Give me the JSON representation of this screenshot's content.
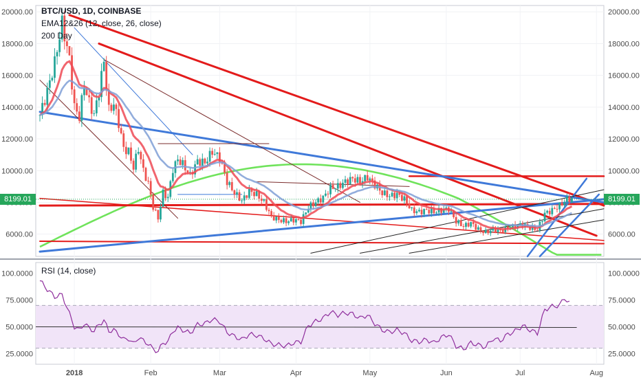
{
  "header": {
    "symbol": "BTC/USD, 1D, COINBASE",
    "ema_label": "EMA12&26 (12, close, 26, close)",
    "ma_label": "200 Day"
  },
  "rsi_panel": {
    "label": "RSI (14, close)"
  },
  "last_price": "8199.01",
  "colors": {
    "up_candle": "#26a69a",
    "down_candle": "#ef5350",
    "ema_fast": "#ee4a55",
    "ema_slow": "#7f9fd6",
    "ma200": "#6fe35b",
    "trend_red": "#e31b1b",
    "trend_blue": "#3f79d9",
    "rsi_line": "#8e2d9c",
    "rsi_band": "#f1e4f8",
    "price_tag": "#26a65b"
  },
  "chart_data": {
    "type": "candlestick",
    "price_axis": {
      "range": [
        4600,
        20400
      ],
      "ticks": [
        "6000.00",
        "8000.00",
        "10000.00",
        "12000.00",
        "14000.00",
        "16000.00",
        "18000.00",
        "20000.00"
      ],
      "tick_values": [
        6000,
        8000,
        10000,
        12000,
        14000,
        16000,
        18000,
        20000
      ]
    },
    "time_axis": {
      "labels": [
        "2018",
        "Feb",
        "Mar",
        "Apr",
        "May",
        "Jun",
        "Jul",
        "Aug"
      ],
      "label_days": [
        14,
        45,
        73,
        104,
        134,
        165,
        195,
        226
      ]
    },
    "price_series": [
      {
        "d": 0,
        "p": 13500
      },
      {
        "d": 3,
        "p": 15000
      },
      {
        "d": 6,
        "p": 16800
      },
      {
        "d": 9,
        "p": 19300
      },
      {
        "d": 12,
        "p": 17000
      },
      {
        "d": 14,
        "p": 14000
      },
      {
        "d": 16,
        "p": 13400
      },
      {
        "d": 18,
        "p": 15400
      },
      {
        "d": 20,
        "p": 14300
      },
      {
        "d": 22,
        "p": 13500
      },
      {
        "d": 24,
        "p": 15000
      },
      {
        "d": 26,
        "p": 16900
      },
      {
        "d": 28,
        "p": 13800
      },
      {
        "d": 30,
        "p": 14200
      },
      {
        "d": 32,
        "p": 13000
      },
      {
        "d": 34,
        "p": 11400
      },
      {
        "d": 36,
        "p": 11200
      },
      {
        "d": 38,
        "p": 10200
      },
      {
        "d": 40,
        "p": 11400
      },
      {
        "d": 42,
        "p": 10000
      },
      {
        "d": 44,
        "p": 9200
      },
      {
        "d": 46,
        "p": 7700
      },
      {
        "d": 48,
        "p": 7000
      },
      {
        "d": 50,
        "p": 8600
      },
      {
        "d": 52,
        "p": 8300
      },
      {
        "d": 54,
        "p": 10100
      },
      {
        "d": 56,
        "p": 10700
      },
      {
        "d": 58,
        "p": 10400
      },
      {
        "d": 61,
        "p": 9700
      },
      {
        "d": 64,
        "p": 10600
      },
      {
        "d": 67,
        "p": 10500
      },
      {
        "d": 70,
        "p": 11200
      },
      {
        "d": 73,
        "p": 10800
      },
      {
        "d": 76,
        "p": 9300
      },
      {
        "d": 79,
        "p": 8600
      },
      {
        "d": 82,
        "p": 8100
      },
      {
        "d": 85,
        "p": 8700
      },
      {
        "d": 88,
        "p": 8500
      },
      {
        "d": 91,
        "p": 8000
      },
      {
        "d": 94,
        "p": 7100
      },
      {
        "d": 97,
        "p": 6900
      },
      {
        "d": 100,
        "p": 6800
      },
      {
        "d": 103,
        "p": 6900
      },
      {
        "d": 106,
        "p": 6800
      },
      {
        "d": 109,
        "p": 7700
      },
      {
        "d": 112,
        "p": 8000
      },
      {
        "d": 115,
        "p": 8300
      },
      {
        "d": 118,
        "p": 8900
      },
      {
        "d": 121,
        "p": 9000
      },
      {
        "d": 124,
        "p": 9300
      },
      {
        "d": 127,
        "p": 9500
      },
      {
        "d": 130,
        "p": 9300
      },
      {
        "d": 133,
        "p": 9600
      },
      {
        "d": 136,
        "p": 9100
      },
      {
        "d": 139,
        "p": 8600
      },
      {
        "d": 142,
        "p": 8400
      },
      {
        "d": 145,
        "p": 8500
      },
      {
        "d": 148,
        "p": 8200
      },
      {
        "d": 151,
        "p": 7500
      },
      {
        "d": 154,
        "p": 7400
      },
      {
        "d": 157,
        "p": 7500
      },
      {
        "d": 160,
        "p": 7400
      },
      {
        "d": 163,
        "p": 7500
      },
      {
        "d": 166,
        "p": 7600
      },
      {
        "d": 169,
        "p": 6800
      },
      {
        "d": 172,
        "p": 6500
      },
      {
        "d": 175,
        "p": 6700
      },
      {
        "d": 178,
        "p": 6300
      },
      {
        "d": 181,
        "p": 6100
      },
      {
        "d": 184,
        "p": 6300
      },
      {
        "d": 187,
        "p": 6200
      },
      {
        "d": 190,
        "p": 6400
      },
      {
        "d": 193,
        "p": 6500
      },
      {
        "d": 196,
        "p": 6600
      },
      {
        "d": 199,
        "p": 6400
      },
      {
        "d": 202,
        "p": 6300
      },
      {
        "d": 205,
        "p": 7300
      },
      {
        "d": 208,
        "p": 7500
      },
      {
        "d": 211,
        "p": 7800
      },
      {
        "d": 214,
        "p": 8200
      },
      {
        "d": 216,
        "p": 8199
      }
    ],
    "rsi": {
      "range": [
        15,
        110
      ],
      "ticks": [
        "25.0000",
        "50.0000",
        "75.0000",
        "100.0000"
      ],
      "tick_values": [
        25,
        50,
        75,
        100
      ],
      "band": [
        30,
        70
      ],
      "midline": 50,
      "values": [
        {
          "d": 0,
          "v": 93
        },
        {
          "d": 3,
          "v": 85
        },
        {
          "d": 6,
          "v": 78
        },
        {
          "d": 9,
          "v": 80
        },
        {
          "d": 12,
          "v": 62
        },
        {
          "d": 14,
          "v": 50
        },
        {
          "d": 16,
          "v": 47
        },
        {
          "d": 18,
          "v": 53
        },
        {
          "d": 20,
          "v": 49
        },
        {
          "d": 22,
          "v": 46
        },
        {
          "d": 24,
          "v": 52
        },
        {
          "d": 26,
          "v": 56
        },
        {
          "d": 28,
          "v": 46
        },
        {
          "d": 30,
          "v": 47
        },
        {
          "d": 32,
          "v": 43
        },
        {
          "d": 34,
          "v": 38
        },
        {
          "d": 36,
          "v": 39
        },
        {
          "d": 38,
          "v": 34
        },
        {
          "d": 40,
          "v": 40
        },
        {
          "d": 42,
          "v": 37
        },
        {
          "d": 44,
          "v": 34
        },
        {
          "d": 46,
          "v": 29
        },
        {
          "d": 48,
          "v": 27
        },
        {
          "d": 50,
          "v": 35
        },
        {
          "d": 52,
          "v": 36
        },
        {
          "d": 54,
          "v": 46
        },
        {
          "d": 56,
          "v": 49
        },
        {
          "d": 58,
          "v": 47
        },
        {
          "d": 61,
          "v": 44
        },
        {
          "d": 64,
          "v": 52
        },
        {
          "d": 67,
          "v": 53
        },
        {
          "d": 70,
          "v": 57
        },
        {
          "d": 73,
          "v": 55
        },
        {
          "d": 76,
          "v": 45
        },
        {
          "d": 79,
          "v": 41
        },
        {
          "d": 82,
          "v": 38
        },
        {
          "d": 85,
          "v": 43
        },
        {
          "d": 88,
          "v": 42
        },
        {
          "d": 91,
          "v": 39
        },
        {
          "d": 94,
          "v": 34
        },
        {
          "d": 97,
          "v": 33
        },
        {
          "d": 100,
          "v": 32
        },
        {
          "d": 103,
          "v": 35
        },
        {
          "d": 106,
          "v": 36
        },
        {
          "d": 109,
          "v": 51
        },
        {
          "d": 112,
          "v": 55
        },
        {
          "d": 115,
          "v": 58
        },
        {
          "d": 118,
          "v": 64
        },
        {
          "d": 121,
          "v": 61
        },
        {
          "d": 124,
          "v": 63
        },
        {
          "d": 127,
          "v": 62
        },
        {
          "d": 130,
          "v": 58
        },
        {
          "d": 133,
          "v": 61
        },
        {
          "d": 136,
          "v": 53
        },
        {
          "d": 139,
          "v": 47
        },
        {
          "d": 142,
          "v": 45
        },
        {
          "d": 145,
          "v": 47
        },
        {
          "d": 148,
          "v": 44
        },
        {
          "d": 151,
          "v": 37
        },
        {
          "d": 154,
          "v": 36
        },
        {
          "d": 157,
          "v": 38
        },
        {
          "d": 160,
          "v": 35
        },
        {
          "d": 163,
          "v": 40
        },
        {
          "d": 166,
          "v": 43
        },
        {
          "d": 169,
          "v": 32
        },
        {
          "d": 172,
          "v": 29
        },
        {
          "d": 175,
          "v": 35
        },
        {
          "d": 178,
          "v": 33
        },
        {
          "d": 181,
          "v": 31
        },
        {
          "d": 184,
          "v": 39
        },
        {
          "d": 187,
          "v": 37
        },
        {
          "d": 190,
          "v": 43
        },
        {
          "d": 193,
          "v": 46
        },
        {
          "d": 196,
          "v": 51
        },
        {
          "d": 199,
          "v": 47
        },
        {
          "d": 202,
          "v": 44
        },
        {
          "d": 205,
          "v": 66
        },
        {
          "d": 208,
          "v": 69
        },
        {
          "d": 211,
          "v": 70
        },
        {
          "d": 213,
          "v": 77
        },
        {
          "d": 215,
          "v": 72
        }
      ]
    }
  }
}
